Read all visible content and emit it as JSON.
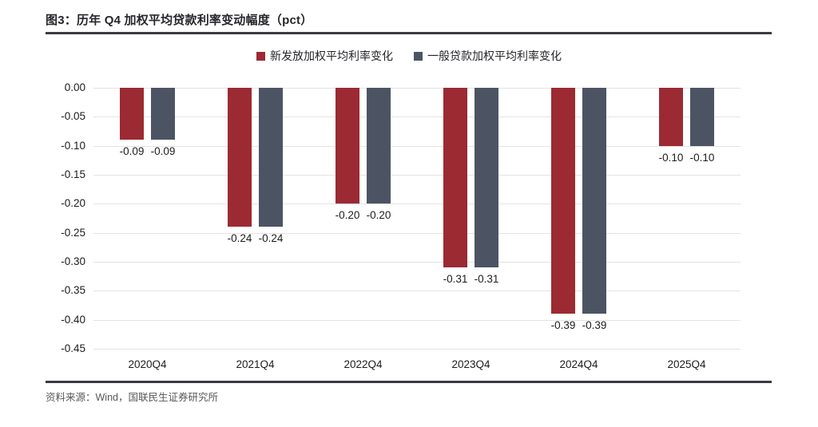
{
  "header": {
    "title": "图3：历年 Q4 加权平均贷款利率变动幅度（pct）"
  },
  "footer": {
    "source": "资料来源：Wind，国联民生证券研究所"
  },
  "colors": {
    "series_new_loans": "#9b2a33",
    "series_general_loans": "#4c5464",
    "gridline": "#e3e3e3",
    "rule": "#3a3a40",
    "text": "#1c1c1c"
  },
  "chart_data": {
    "type": "bar",
    "title": "历年 Q4 加权平均贷款利率变动幅度（pct）",
    "categories": [
      "2020Q4",
      "2021Q4",
      "2022Q4",
      "2023Q4",
      "2024Q4",
      "2025Q4"
    ],
    "series": [
      {
        "name": "新发放加权平均利率变化",
        "color": "#9b2a33",
        "values": [
          -0.09,
          -0.24,
          -0.2,
          -0.31,
          -0.39,
          -0.1
        ]
      },
      {
        "name": "一般贷款加权平均利率变化",
        "color": "#4c5464",
        "values": [
          -0.09,
          -0.24,
          -0.2,
          -0.31,
          -0.39,
          -0.1
        ]
      }
    ],
    "xlabel": "",
    "ylabel": "",
    "ylim": [
      -0.45,
      0
    ],
    "ytick_step": 0.05,
    "yticks": [
      "0.00",
      "-0.05",
      "-0.10",
      "-0.15",
      "-0.20",
      "-0.25",
      "-0.30",
      "-0.35",
      "-0.40",
      "-0.45"
    ],
    "grid": true,
    "legend_position": "top-center",
    "value_labels": "below-bars, 2 decimals"
  }
}
